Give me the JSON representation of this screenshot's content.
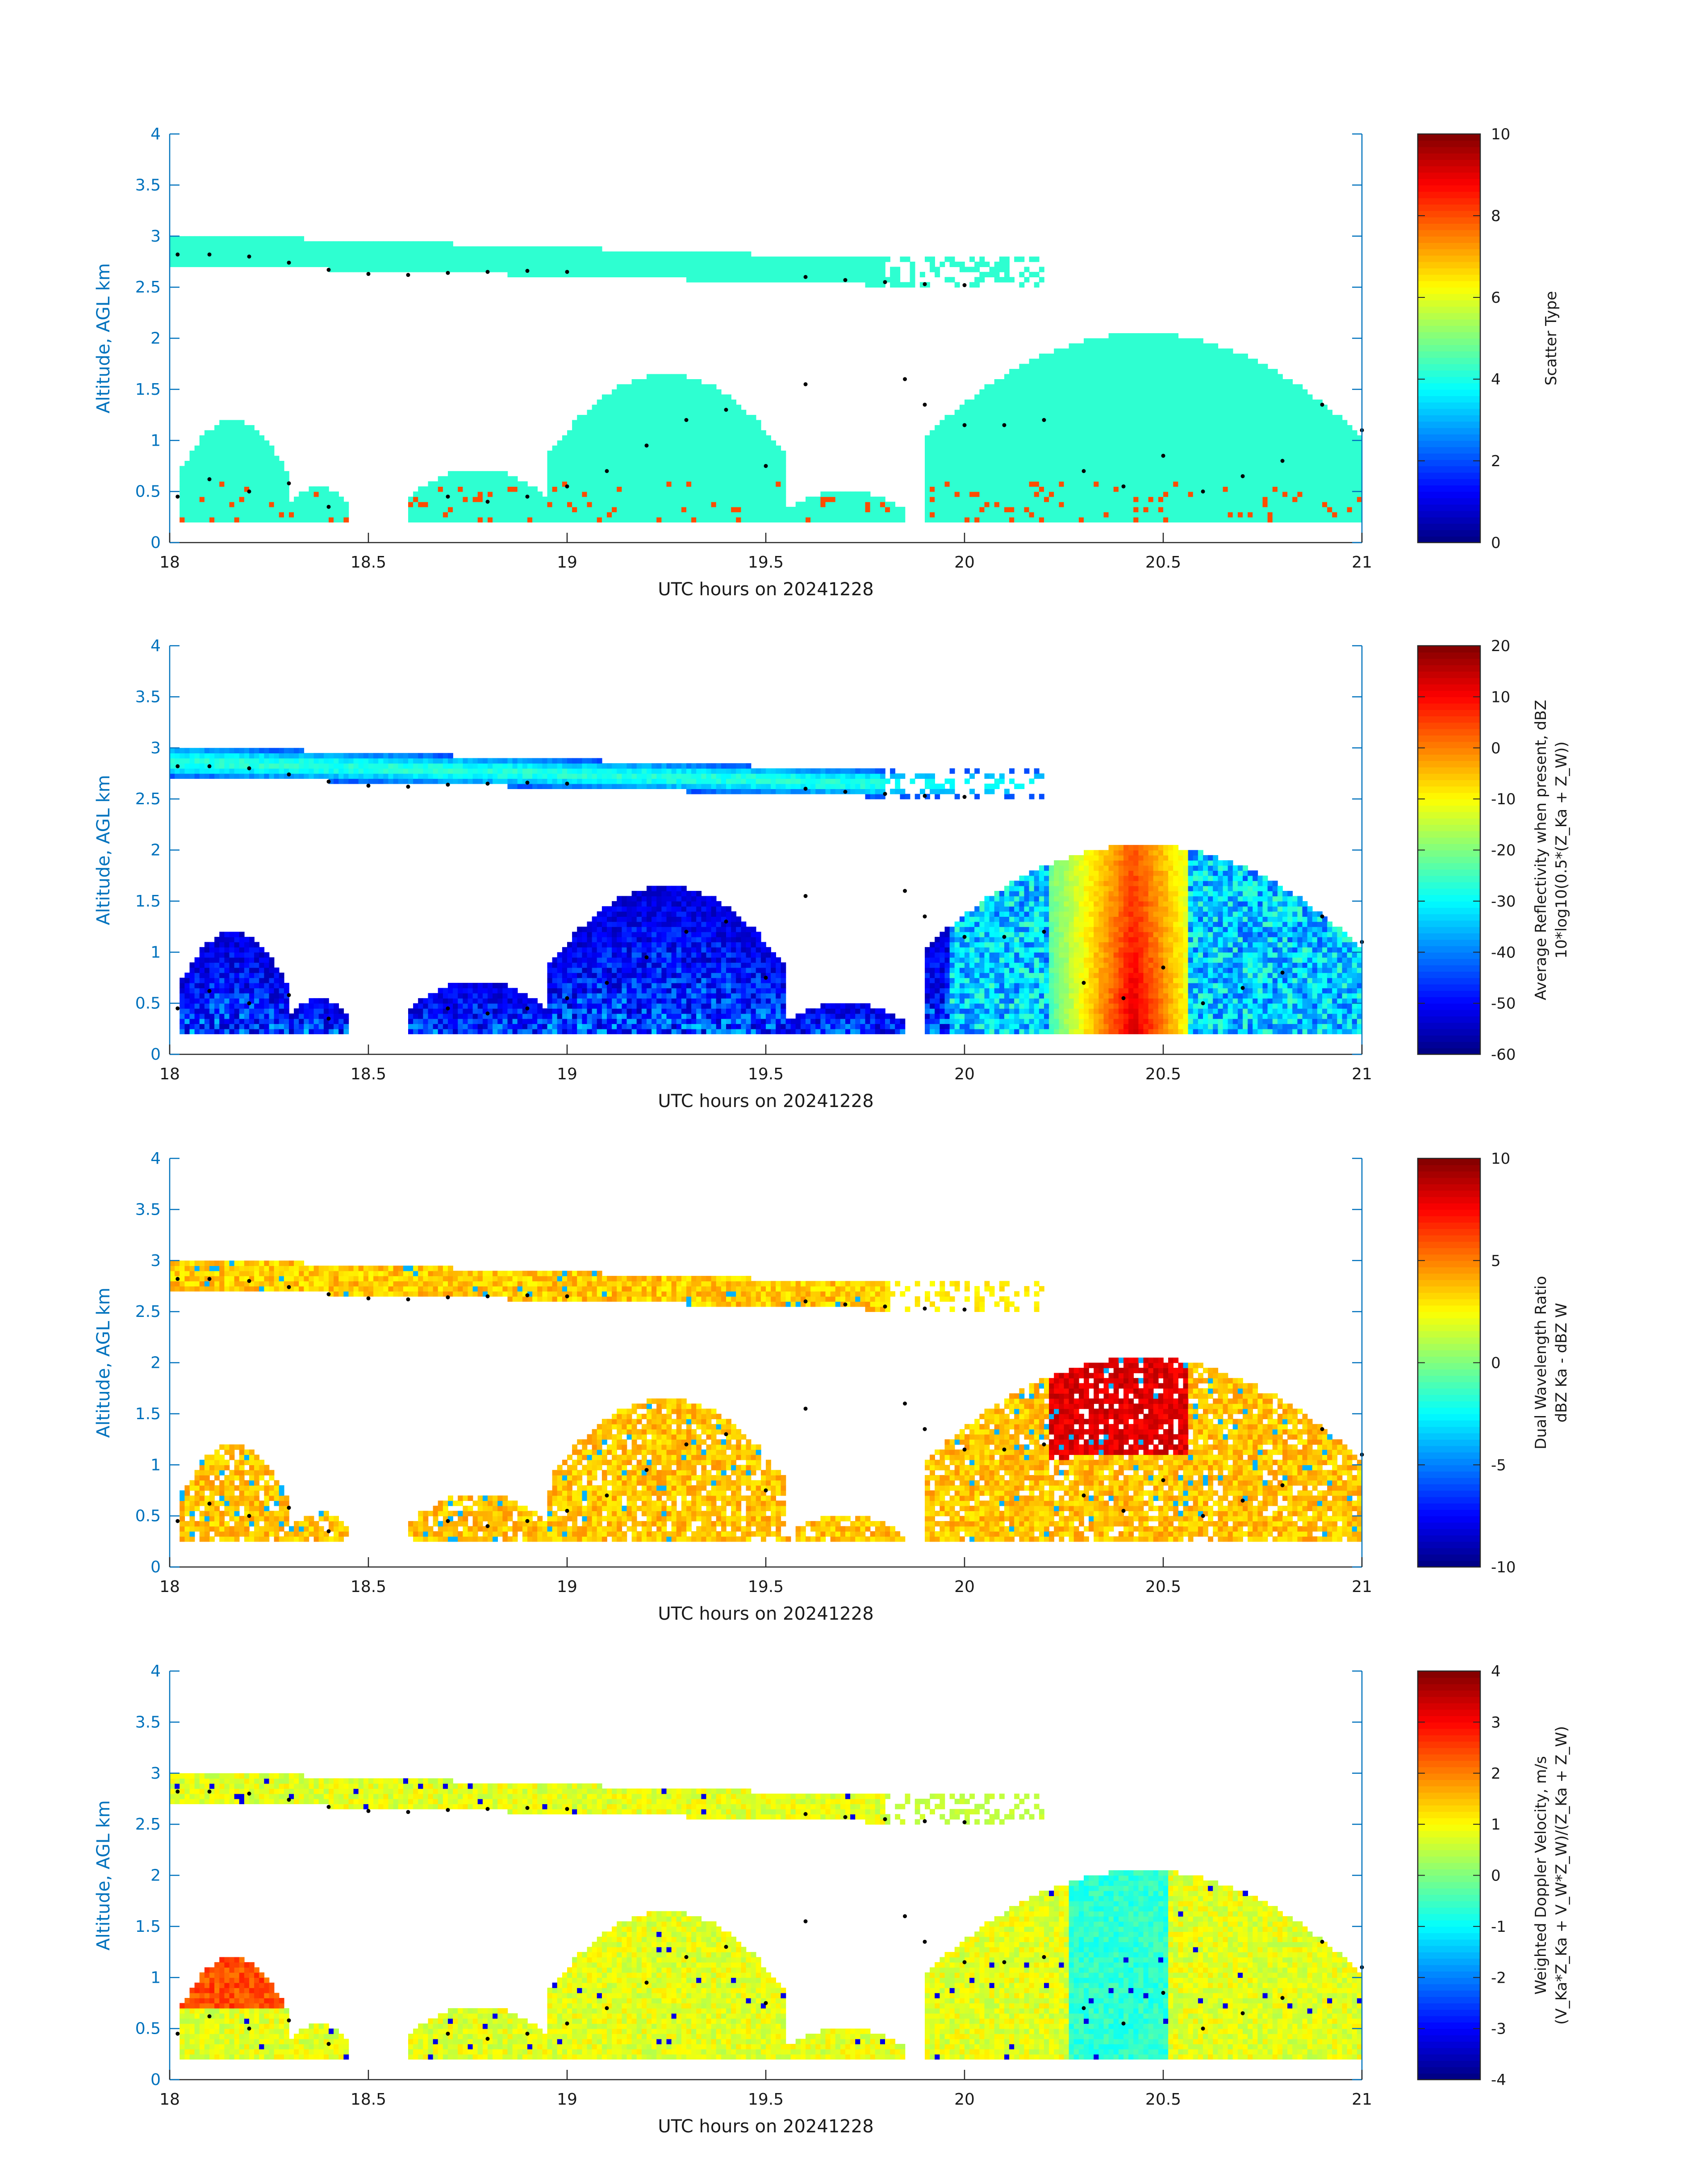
{
  "colors": {
    "axis_blue": "#0072bd",
    "background": "#ffffff",
    "colormap": "jet",
    "dot_marker": "#000000"
  },
  "chart_data": [
    {
      "type": "heatmap",
      "id": "scatter_type",
      "x_range": [
        18,
        21
      ],
      "y_range": [
        0,
        4
      ],
      "x_ticks": [
        "18",
        "18.5",
        "19",
        "19.5",
        "20",
        "20.5",
        "21"
      ],
      "y_ticks": [
        "0",
        "0.5",
        "1",
        "1.5",
        "2",
        "2.5",
        "3",
        "3.5",
        "4"
      ],
      "xlabel": "UTC hours on 20241228",
      "ylabel": "Altitude, AGL km",
      "colorbar": {
        "label_lines": [
          "Scatter Type"
        ],
        "range": [
          0,
          10
        ],
        "ticks": [
          "0",
          "2",
          "4",
          "6",
          "8",
          "10"
        ]
      },
      "scene": "scatter"
    },
    {
      "type": "heatmap",
      "id": "reflectivity",
      "x_range": [
        18,
        21
      ],
      "y_range": [
        0,
        4
      ],
      "x_ticks": [
        "18",
        "18.5",
        "19",
        "19.5",
        "20",
        "20.5",
        "21"
      ],
      "y_ticks": [
        "0",
        "0.5",
        "1",
        "1.5",
        "2",
        "2.5",
        "3",
        "3.5",
        "4"
      ],
      "xlabel": "UTC hours on 20241228",
      "ylabel": "Altitude, AGL km",
      "colorbar": {
        "label_lines": [
          "Average Reflectivity when present, dBZ",
          "10*log10(0.5*(Z_Ka + Z_W))"
        ],
        "range": [
          -60,
          20
        ],
        "ticks": [
          "-60",
          "-50",
          "-40",
          "-30",
          "-20",
          "-10",
          "0",
          "10",
          "20"
        ]
      },
      "scene": "reflectivity"
    },
    {
      "type": "heatmap",
      "id": "dwr",
      "x_range": [
        18,
        21
      ],
      "y_range": [
        0,
        4
      ],
      "x_ticks": [
        "18",
        "18.5",
        "19",
        "19.5",
        "20",
        "20.5",
        "21"
      ],
      "y_ticks": [
        "0",
        "0.5",
        "1",
        "1.5",
        "2",
        "2.5",
        "3",
        "3.5",
        "4"
      ],
      "xlabel": "UTC hours on 20241228",
      "ylabel": "Altitude, AGL km",
      "colorbar": {
        "label_lines": [
          "Dual Wavelength Ratio",
          "dBZ Ka - dBZ W"
        ],
        "range": [
          -10,
          10
        ],
        "ticks": [
          "-10",
          "-5",
          "0",
          "5",
          "10"
        ]
      },
      "scene": "dwr"
    },
    {
      "type": "heatmap",
      "id": "doppler",
      "x_range": [
        18,
        21
      ],
      "y_range": [
        0,
        4
      ],
      "x_ticks": [
        "18",
        "18.5",
        "19",
        "19.5",
        "20",
        "20.5",
        "21"
      ],
      "y_ticks": [
        "0",
        "0.5",
        "1",
        "1.5",
        "2",
        "2.5",
        "3",
        "3.5",
        "4"
      ],
      "xlabel": "UTC hours on 20241228",
      "ylabel": "Altitude, AGL km",
      "colorbar": {
        "label_lines": [
          "Weighted Doppler Velocity, m/s",
          "(V_Ka*Z_Ka + V_W*Z_W)/(Z_Ka + Z_W)"
        ],
        "range": [
          -4,
          4
        ],
        "ticks": [
          "-4",
          "-3",
          "-2",
          "-1",
          "0",
          "1",
          "2",
          "3",
          "4"
        ]
      },
      "scene": "doppler"
    }
  ],
  "cloud_layers": {
    "upper_layer": {
      "t_start": 18.0,
      "t_end": 19.8,
      "top_start": 3.02,
      "top_end": 2.78,
      "base_start": 2.72,
      "base_end": 2.52
    },
    "lower_features": [
      {
        "t": [
          18.02,
          18.3
        ],
        "base": 0.2,
        "top": 1.2
      },
      {
        "t": [
          18.3,
          18.45
        ],
        "base": 0.2,
        "top": 0.55
      },
      {
        "t": [
          18.6,
          18.95
        ],
        "base": 0.2,
        "top": 0.72
      },
      {
        "t": [
          18.95,
          19.55
        ],
        "base": 0.2,
        "top": 1.65
      },
      {
        "t": [
          19.55,
          19.85
        ],
        "base": 0.2,
        "top": 0.5
      },
      {
        "t": [
          19.9,
          21.0
        ],
        "base": 0.2,
        "top": 2.05
      }
    ],
    "dot_track": [
      [
        18.02,
        2.82
      ],
      [
        18.1,
        2.82
      ],
      [
        18.2,
        2.8
      ],
      [
        18.3,
        2.74
      ],
      [
        18.4,
        2.67
      ],
      [
        18.5,
        2.63
      ],
      [
        18.6,
        2.62
      ],
      [
        18.7,
        2.64
      ],
      [
        18.8,
        2.65
      ],
      [
        18.9,
        2.66
      ],
      [
        19.0,
        2.65
      ],
      [
        19.6,
        2.6
      ],
      [
        19.7,
        2.57
      ],
      [
        19.8,
        2.55
      ],
      [
        19.9,
        2.53
      ],
      [
        20.0,
        2.52
      ],
      [
        18.02,
        0.45
      ],
      [
        18.1,
        0.62
      ],
      [
        18.2,
        0.5
      ],
      [
        18.3,
        0.58
      ],
      [
        18.4,
        0.35
      ],
      [
        18.7,
        0.45
      ],
      [
        18.8,
        0.4
      ],
      [
        18.9,
        0.45
      ],
      [
        19.0,
        0.55
      ],
      [
        19.1,
        0.7
      ],
      [
        19.2,
        0.95
      ],
      [
        19.3,
        1.2
      ],
      [
        19.4,
        1.3
      ],
      [
        19.5,
        0.75
      ],
      [
        19.6,
        1.55
      ],
      [
        19.85,
        1.6
      ],
      [
        19.9,
        1.35
      ],
      [
        20.0,
        1.15
      ],
      [
        20.1,
        1.15
      ],
      [
        20.2,
        1.2
      ],
      [
        20.3,
        0.7
      ],
      [
        20.4,
        0.55
      ],
      [
        20.5,
        0.85
      ],
      [
        20.6,
        0.5
      ],
      [
        20.7,
        0.65
      ],
      [
        20.8,
        0.8
      ],
      [
        20.9,
        1.35
      ],
      [
        21.0,
        1.1
      ]
    ]
  }
}
